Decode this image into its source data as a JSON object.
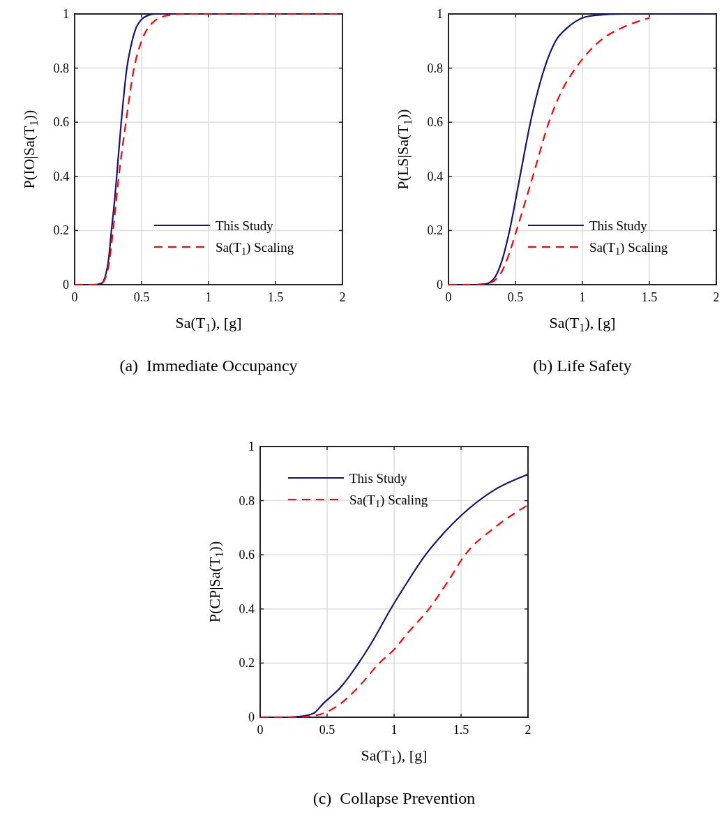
{
  "chart_data": [
    {
      "type": "line",
      "title": "(a)  Immediate Occupancy",
      "xlabel": "Sa(T$_{1}$), [g]",
      "ylabel": "P(IO|Sa(T$_{1}$))",
      "xlim": [
        0,
        2
      ],
      "ylim": [
        0,
        1
      ],
      "xticks": [
        0,
        0.5,
        1,
        1.5,
        2
      ],
      "yticks": [
        0,
        0.2,
        0.4,
        0.6,
        0.8,
        1
      ],
      "grid": true,
      "legend": "bottom right",
      "series": [
        {
          "name": "This Study",
          "color": "#141473",
          "line_style": "solid",
          "x": [
            0,
            0.15,
            0.2,
            0.25,
            0.275,
            0.3,
            0.314,
            0.348,
            0.39,
            0.42,
            0.46,
            0.5,
            0.55,
            0.6,
            2
          ],
          "values": [
            0,
            0,
            0.005,
            0.08,
            0.2,
            0.32,
            0.4,
            0.6,
            0.8,
            0.88,
            0.95,
            0.98,
            0.995,
            1,
            1
          ]
        },
        {
          "name": "Sa(T$_{1}$) Scaling",
          "color": "#ff0000",
          "line_style": "dashed",
          "x": [
            0,
            0.15,
            0.2,
            0.25,
            0.287,
            0.33,
            0.383,
            0.444,
            0.5,
            0.55,
            0.6,
            0.7,
            0.8,
            2
          ],
          "values": [
            0,
            0,
            0.004,
            0.06,
            0.2,
            0.4,
            0.6,
            0.8,
            0.9,
            0.95,
            0.975,
            0.995,
            1,
            1
          ]
        }
      ]
    },
    {
      "type": "line",
      "title": "(b) Life Safety",
      "xlabel": "Sa(T$_{1}$), [g]",
      "ylabel": "P(LS|Sa(T$_{1}$))",
      "xlim": [
        0,
        2
      ],
      "ylim": [
        0,
        1
      ],
      "xticks": [
        0,
        0.5,
        1,
        1.5,
        2
      ],
      "yticks": [
        0,
        0.2,
        0.4,
        0.6,
        0.8,
        1
      ],
      "grid": true,
      "legend": "bottom right",
      "series": [
        {
          "name": "This Study",
          "color": "#141473",
          "line_style": "solid",
          "x": [
            0,
            0.2,
            0.28,
            0.35,
            0.4,
            0.456,
            0.534,
            0.612,
            0.717,
            0.8,
            0.89,
            1,
            1.1,
            1.3,
            2
          ],
          "values": [
            0,
            0,
            0.003,
            0.03,
            0.09,
            0.2,
            0.4,
            0.6,
            0.8,
            0.9,
            0.95,
            0.985,
            0.995,
            1,
            1
          ]
        },
        {
          "name": "Sa(T$_{1}$) Scaling",
          "color": "#ff0000",
          "line_style": "dashed",
          "x": [
            0,
            0.2,
            0.3,
            0.4,
            0.45,
            0.508,
            0.63,
            0.75,
            0.85,
            0.95,
            1.13,
            1.3,
            1.5
          ],
          "values": [
            0,
            0,
            0.005,
            0.05,
            0.11,
            0.2,
            0.4,
            0.6,
            0.72,
            0.8,
            0.9,
            0.95,
            0.985
          ]
        }
      ]
    },
    {
      "type": "line",
      "title": "(c)  Collapse Prevention",
      "xlabel": "Sa(T$_{1}$), [g]",
      "ylabel": "P(CP|Sa(T$_{1}$))",
      "xlim": [
        0,
        2
      ],
      "ylim": [
        0,
        1
      ],
      "xticks": [
        0,
        0.5,
        1,
        1.5,
        2
      ],
      "yticks": [
        0,
        0.2,
        0.4,
        0.6,
        0.8,
        1
      ],
      "grid": true,
      "legend": "top left",
      "series": [
        {
          "name": "This Study",
          "color": "#141473",
          "line_style": "solid",
          "x": [
            0,
            0.2,
            0.3,
            0.4,
            0.47,
            0.6,
            0.735,
            0.85,
            0.975,
            1.1,
            1.235,
            1.37,
            1.5,
            1.75,
            2
          ],
          "values": [
            0,
            0,
            0.003,
            0.015,
            0.05,
            0.11,
            0.2,
            0.29,
            0.4,
            0.5,
            0.6,
            0.68,
            0.745,
            0.84,
            0.897
          ]
        },
        {
          "name": "Sa(T$_{1}$) Scaling",
          "color": "#ff0000",
          "line_style": "dashed",
          "x": [
            0,
            0.3,
            0.4,
            0.5,
            0.6,
            0.75,
            0.89,
            1,
            1.1,
            1.26,
            1.4,
            1.53,
            1.75,
            2
          ],
          "values": [
            0,
            0,
            0.005,
            0.02,
            0.05,
            0.12,
            0.2,
            0.25,
            0.31,
            0.4,
            0.5,
            0.6,
            0.7,
            0.784
          ]
        }
      ]
    }
  ]
}
